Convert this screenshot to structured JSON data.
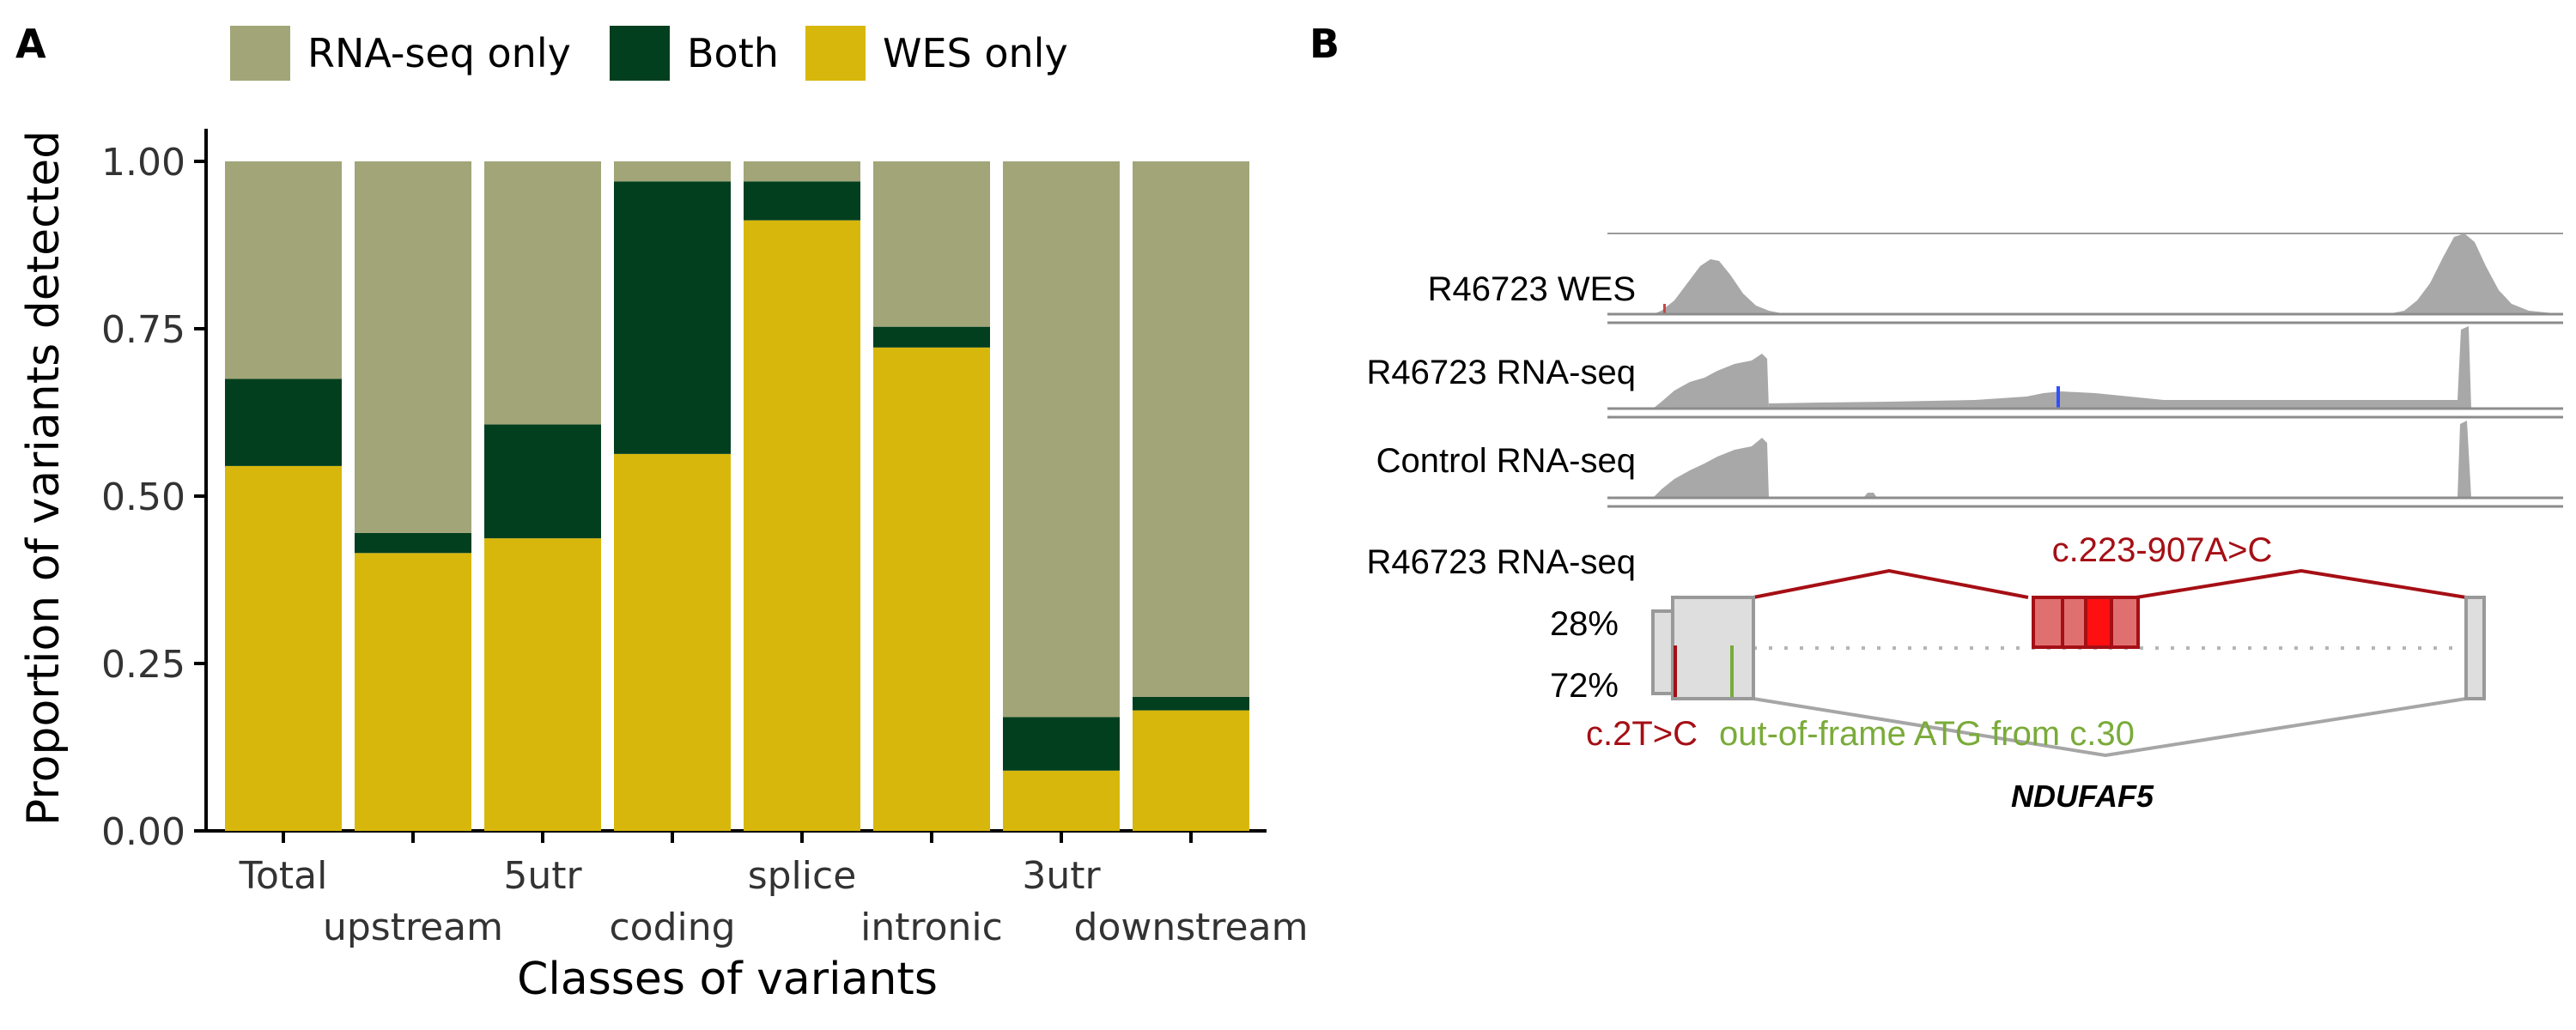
{
  "panels": {
    "a": {
      "label": "A"
    },
    "b": {
      "label": "B"
    }
  },
  "chart_data": {
    "type": "bar",
    "stacked": true,
    "categories": [
      "Total",
      "upstream",
      "5utr",
      "coding",
      "splice",
      "intronic",
      "3utr",
      "downstream"
    ],
    "xlabel": "Classes of variants",
    "ylabel": "Proportion of variants detected",
    "ylim": [
      0,
      1.05
    ],
    "yticks": [
      "0.00",
      "0.25",
      "0.50",
      "0.75",
      "1.00"
    ],
    "legend_position": "top",
    "series": [
      {
        "name": "WES only",
        "color": "#d8b70c",
        "values": [
          0.545,
          0.415,
          0.437,
          0.563,
          0.912,
          0.722,
          0.09,
          0.18
        ]
      },
      {
        "name": "Both",
        "color": "#023f1f",
        "values": [
          0.13,
          0.03,
          0.17,
          0.407,
          0.058,
          0.031,
          0.08,
          0.02
        ]
      },
      {
        "name": "RNA-seq only",
        "color": "#a2a578",
        "values": [
          0.325,
          0.555,
          0.393,
          0.03,
          0.03,
          0.247,
          0.83,
          0.8
        ]
      }
    ],
    "legend_order": [
      "RNA-seq only",
      "Both",
      "WES only"
    ]
  },
  "panel_b": {
    "tracks": [
      {
        "name": "R46723 WES"
      },
      {
        "name": "R46723 RNA-seq"
      },
      {
        "name": "Control RNA-seq"
      }
    ],
    "sashimi_label": "R46723 RNA-seq",
    "percent_top": "28%",
    "percent_bottom": "72%",
    "variant_intronic": "c.223-907A>C",
    "variant_start": "c.2T>C",
    "atg_note": "out-of-frame ATG from c.30",
    "gene": "NDUFAF5",
    "colors": {
      "red": "#a50f15",
      "green": "#7aab3a",
      "grey": "#a6a6a6"
    }
  }
}
